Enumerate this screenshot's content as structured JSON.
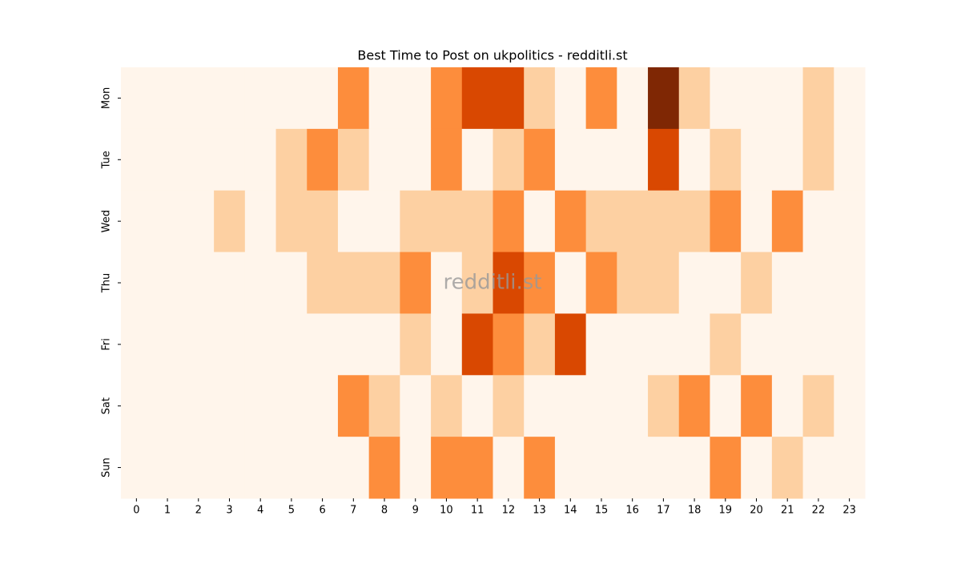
{
  "chart_data": {
    "type": "heatmap",
    "title": "Best Time to Post on ukpolitics - redditli.st",
    "watermark": "redditli.st",
    "x": [
      0,
      1,
      2,
      3,
      4,
      5,
      6,
      7,
      8,
      9,
      10,
      11,
      12,
      13,
      14,
      15,
      16,
      17,
      18,
      19,
      20,
      21,
      22,
      23
    ],
    "y": [
      "Mon",
      "Tue",
      "Wed",
      "Thu",
      "Fri",
      "Sat",
      "Sun"
    ],
    "values": [
      [
        0,
        0,
        0,
        0,
        0,
        0,
        0,
        2,
        0,
        0,
        2,
        3,
        3,
        1,
        0,
        2,
        0,
        4,
        1,
        0,
        0,
        0,
        1,
        0
      ],
      [
        0,
        0,
        0,
        0,
        0,
        1,
        2,
        1,
        0,
        0,
        2,
        0,
        1,
        2,
        0,
        0,
        0,
        3,
        0,
        1,
        0,
        0,
        1,
        0
      ],
      [
        0,
        0,
        0,
        1,
        0,
        1,
        1,
        0,
        0,
        1,
        1,
        1,
        2,
        0,
        2,
        1,
        1,
        1,
        1,
        2,
        0,
        2,
        0,
        0
      ],
      [
        0,
        0,
        0,
        0,
        0,
        0,
        1,
        1,
        1,
        2,
        0,
        1,
        3,
        2,
        0,
        2,
        1,
        1,
        0,
        0,
        1,
        0,
        0,
        0
      ],
      [
        0,
        0,
        0,
        0,
        0,
        0,
        0,
        0,
        0,
        1,
        0,
        3,
        2,
        1,
        3,
        0,
        0,
        0,
        0,
        1,
        0,
        0,
        0,
        0
      ],
      [
        0,
        0,
        0,
        0,
        0,
        0,
        0,
        2,
        1,
        0,
        1,
        0,
        1,
        0,
        0,
        0,
        0,
        1,
        2,
        0,
        2,
        0,
        1,
        0
      ],
      [
        0,
        0,
        0,
        0,
        0,
        0,
        0,
        0,
        2,
        0,
        2,
        2,
        0,
        2,
        0,
        0,
        0,
        0,
        0,
        2,
        0,
        1,
        0,
        0
      ]
    ],
    "colors": [
      "#fff5eb",
      "#fdd0a2",
      "#fd8d3c",
      "#d94801",
      "#7f2704"
    ]
  }
}
